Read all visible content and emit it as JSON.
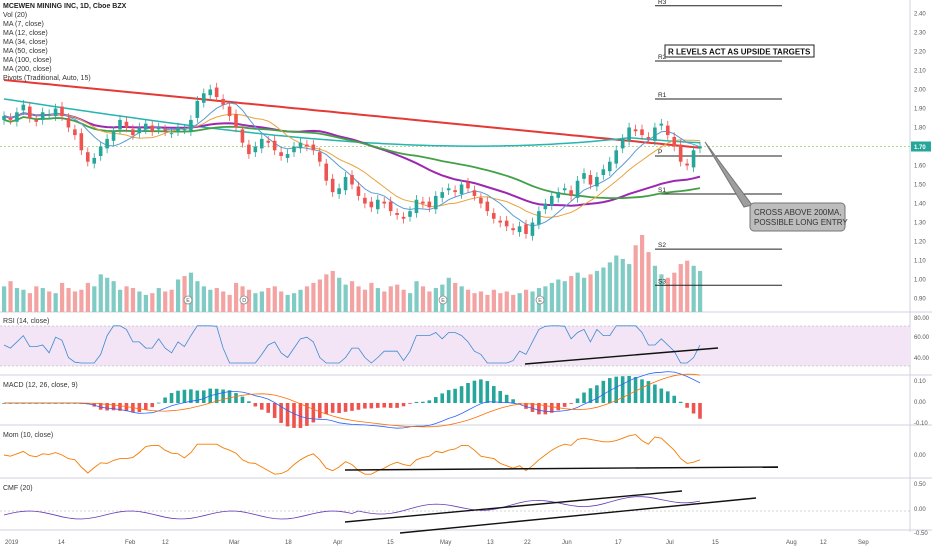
{
  "header": {
    "title": "MCEWEN MINING INC, 1D, Cboe BZX",
    "indicators": [
      "Vol (20)",
      "MA (7, close)",
      "MA (12, close)",
      "MA (34, close)",
      "MA (50, close)",
      "MA (100, close)",
      "MA (200, close)",
      "Pivots (Traditional, Auto, 15)"
    ]
  },
  "annotations": {
    "r_levels": "R LEVELS ACT AS UPSIDE TARGETS",
    "cross_line1": "CROSS ABOVE 200MA,",
    "cross_line2": "POSSIBLE LONG ENTRY"
  },
  "panes": {
    "rsi": "RSI (14, close)",
    "macd": "MACD (12, 26, close, 9)",
    "mom": "Mom (10, close)",
    "cmf": "CMF (20)"
  },
  "colors": {
    "up": "#26a69a",
    "down": "#ef5350",
    "ma7": "#5b9bd5",
    "ma12": "#e8a33d",
    "ma34": "#9c27b0",
    "ma50": "#43a047",
    "ma100": "#26b5b0",
    "ma200": "#e53935",
    "rsi": "#3d8bd1",
    "macd": "#2962ff",
    "signal": "#ff6d00",
    "mom": "#f57c00",
    "cmf": "#673ab7",
    "rsi_bg": "#f3e5f5"
  },
  "chart_data": {
    "type": "candlestick",
    "price_axis": {
      "ticks": [
        "2.40",
        "2.30",
        "2.20",
        "2.10",
        "2.00",
        "1.90",
        "1.80",
        "1.70",
        "1.60",
        "1.50",
        "1.40",
        "1.30",
        "1.20",
        "1.10",
        "1.00",
        "0.90"
      ],
      "range": [
        0.84,
        2.46
      ]
    },
    "current_price": "1.70",
    "x_labels": [
      "2019",
      "14",
      "Feb",
      "12",
      "Mar",
      "18",
      "Apr",
      "15",
      "May",
      "13",
      "22",
      "Jun",
      "17",
      "Jul",
      "15",
      "Aug",
      "12",
      "Sep"
    ],
    "pivots": [
      {
        "label": "R3",
        "value": 2.44
      },
      {
        "label": "R2",
        "value": 2.15
      },
      {
        "label": "R1",
        "value": 1.95
      },
      {
        "label": "P",
        "value": 1.65
      },
      {
        "label": "S1",
        "value": 1.45
      },
      {
        "label": "S2",
        "value": 1.16
      },
      {
        "label": "S3",
        "value": 0.97
      }
    ],
    "earnings_markers": [
      "E",
      "D",
      "E",
      "E"
    ],
    "rsi_axis": [
      "80.00",
      "60.00",
      "40.00"
    ],
    "macd_axis": [
      "0.10",
      "0.00",
      "-0.10"
    ],
    "mom_axis": [
      "0.00"
    ],
    "cmf_axis": [
      "0.50",
      "0.00",
      "-0.50"
    ],
    "closes": [
      1.86,
      1.84,
      1.88,
      1.92,
      1.85,
      1.83,
      1.88,
      1.87,
      1.9,
      1.86,
      1.8,
      1.76,
      1.68,
      1.62,
      1.64,
      1.7,
      1.74,
      1.78,
      1.84,
      1.8,
      1.76,
      1.8,
      1.82,
      1.78,
      1.8,
      1.78,
      1.77,
      1.8,
      1.79,
      1.84,
      1.94,
      1.98,
      2.0,
      1.96,
      1.92,
      1.86,
      1.8,
      1.72,
      1.66,
      1.7,
      1.74,
      1.72,
      1.68,
      1.65,
      1.66,
      1.7,
      1.72,
      1.7,
      1.68,
      1.62,
      1.52,
      1.46,
      1.48,
      1.54,
      1.5,
      1.44,
      1.4,
      1.38,
      1.42,
      1.4,
      1.36,
      1.34,
      1.32,
      1.36,
      1.42,
      1.4,
      1.38,
      1.44,
      1.46,
      1.48,
      1.46,
      1.5,
      1.48,
      1.44,
      1.4,
      1.36,
      1.32,
      1.3,
      1.28,
      1.26,
      1.28,
      1.24,
      1.3,
      1.36,
      1.4,
      1.44,
      1.46,
      1.48,
      1.44,
      1.52,
      1.56,
      1.5,
      1.54,
      1.58,
      1.62,
      1.68,
      1.74,
      1.8,
      1.78,
      1.76,
      1.74,
      1.8,
      1.82,
      1.76,
      1.7,
      1.62,
      1.6,
      1.68,
      1.7
    ],
    "volumes": [
      30,
      36,
      28,
      26,
      22,
      30,
      28,
      24,
      22,
      34,
      28,
      24,
      26,
      34,
      30,
      44,
      40,
      36,
      26,
      30,
      28,
      24,
      20,
      22,
      28,
      24,
      26,
      38,
      42,
      46,
      36,
      30,
      26,
      28,
      24,
      20,
      34,
      30,
      26,
      22,
      24,
      28,
      30,
      24,
      20,
      22,
      26,
      30,
      34,
      38,
      44,
      48,
      40,
      32,
      36,
      30,
      26,
      34,
      28,
      24,
      30,
      32,
      26,
      22,
      36,
      30,
      24,
      28,
      32,
      40,
      34,
      30,
      26,
      22,
      24,
      20,
      26,
      22,
      24,
      20,
      22,
      26,
      24,
      28,
      30,
      34,
      38,
      36,
      42,
      46,
      40,
      44,
      48,
      52,
      58,
      66,
      62,
      56,
      78,
      90,
      70,
      54,
      44,
      40,
      46,
      56,
      60,
      54,
      48
    ]
  }
}
